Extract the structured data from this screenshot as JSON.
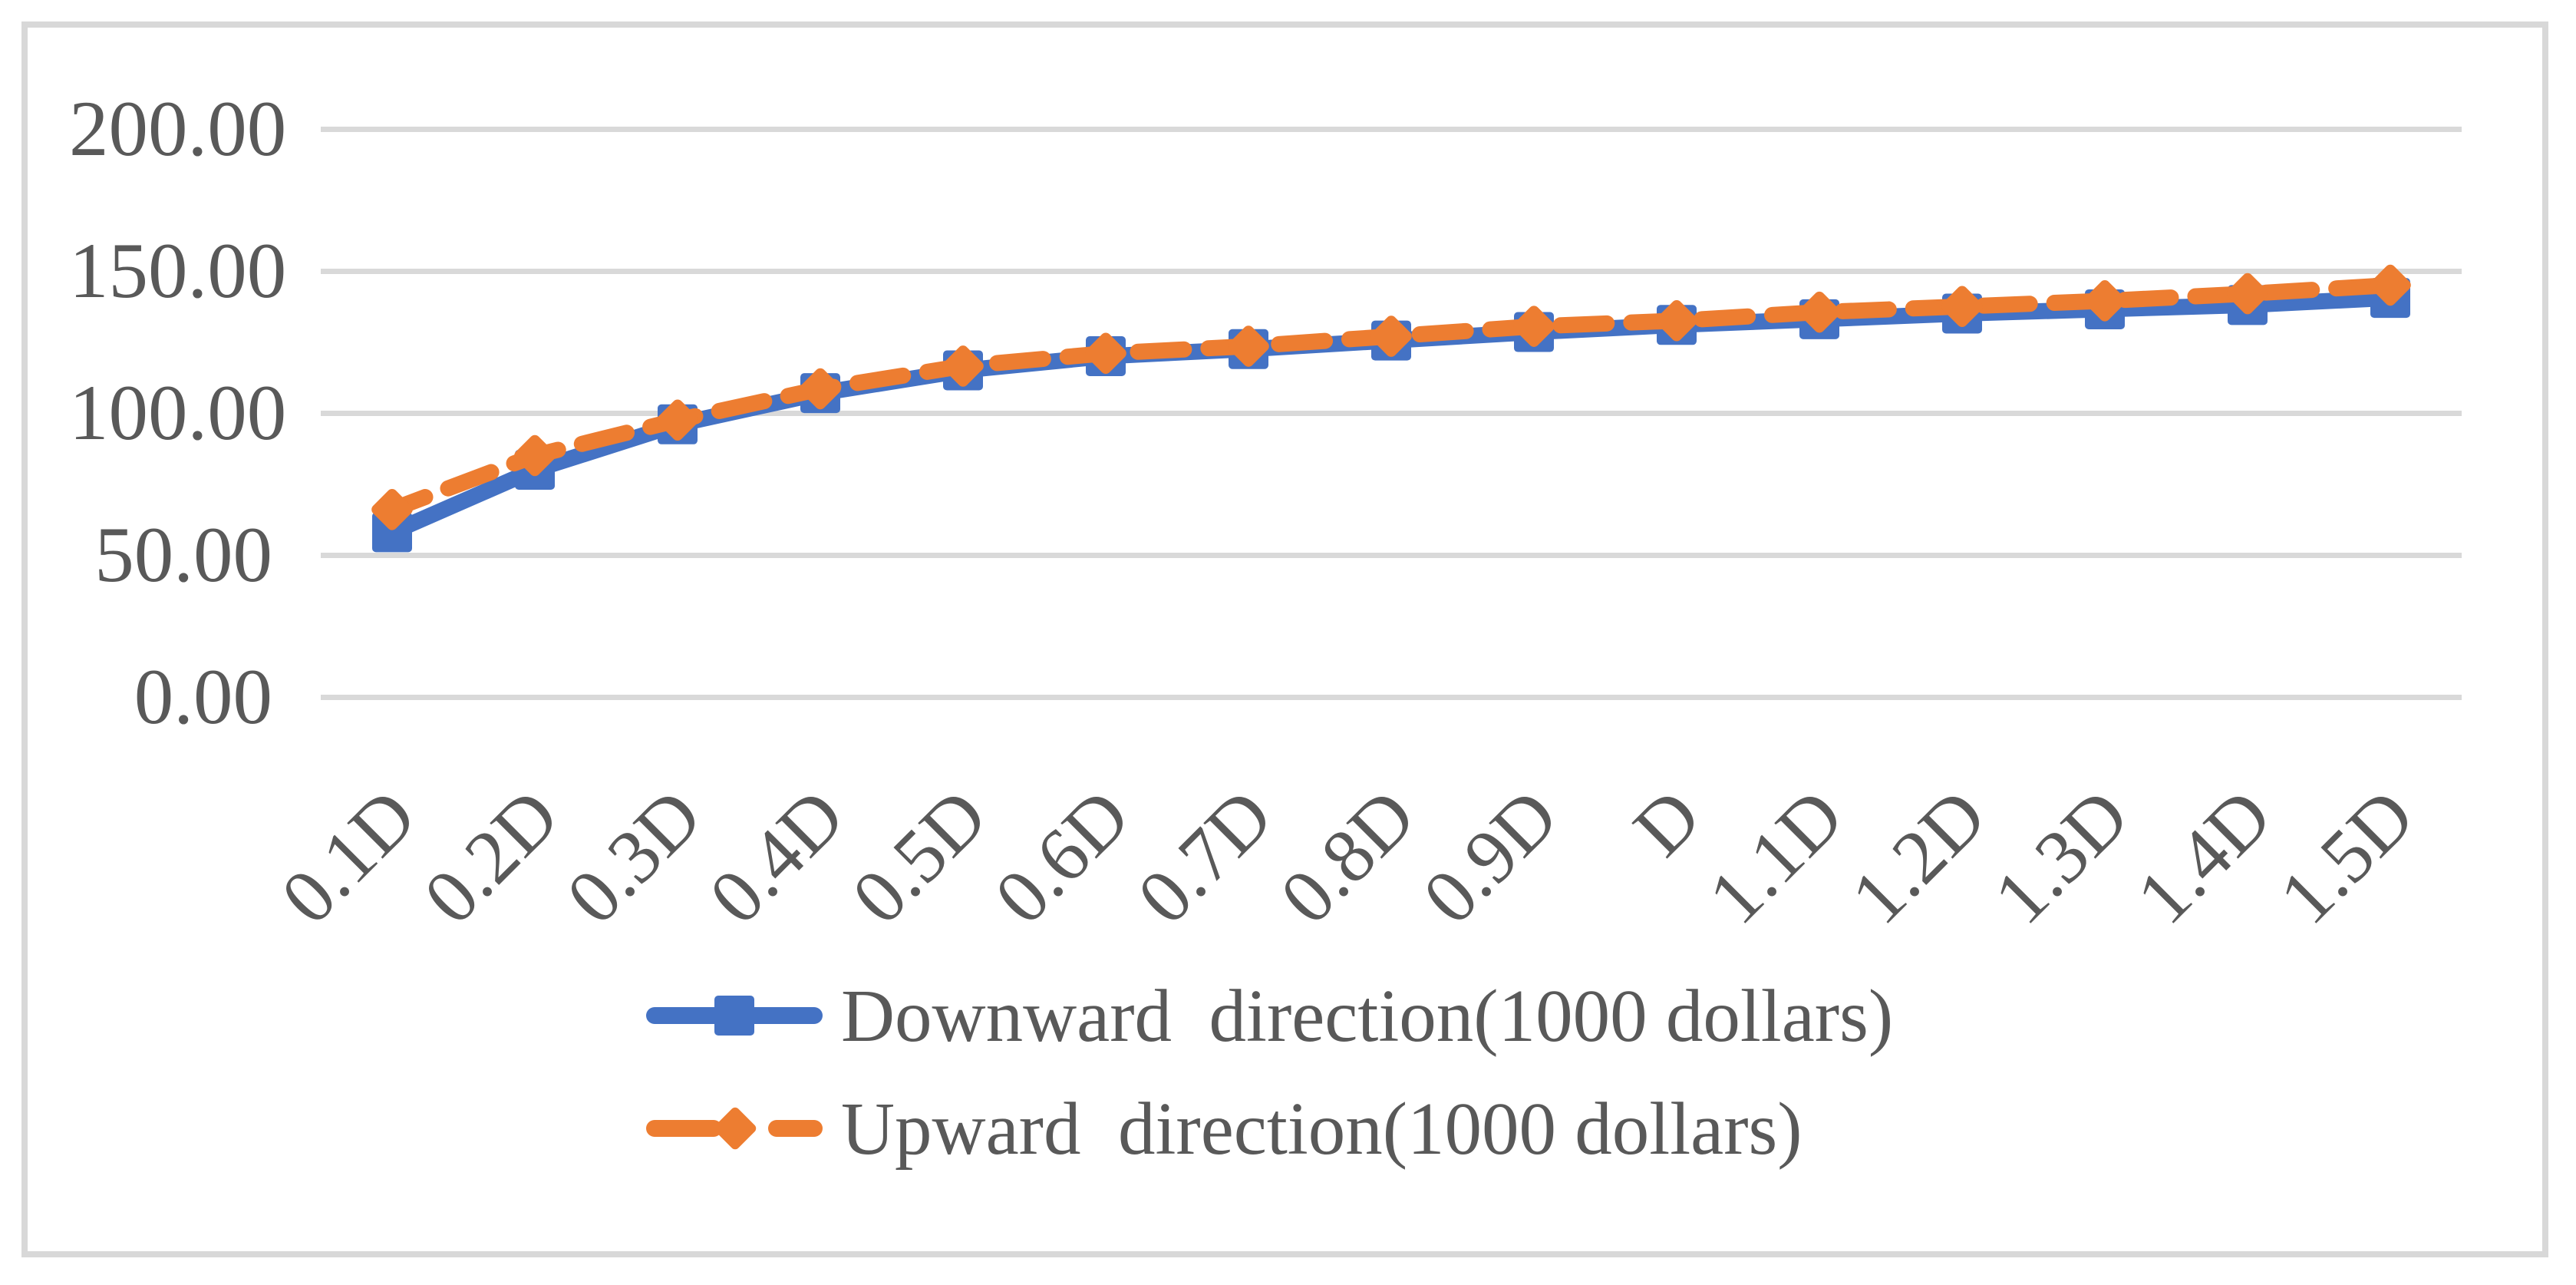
{
  "chart_data": {
    "type": "line",
    "title": "",
    "xlabel": "",
    "ylabel": "",
    "categories": [
      "0.1D",
      "0.2D",
      "0.3D",
      "0.4D",
      "0.5D",
      "0.6D",
      "0.7D",
      "0.8D",
      "0.9D",
      "D",
      "1.1D",
      "1.2D",
      "1.3D",
      "1.4D",
      "1.5D"
    ],
    "series": [
      {
        "name": "Downward  direction(1000 dollars)",
        "color": "#4472C4",
        "marker": "square",
        "line_style": "solid",
        "values": [
          58,
          80,
          96,
          107,
          115,
          120,
          122.5,
          125.5,
          128.5,
          131,
          133,
          135,
          136.5,
          138,
          140.5
        ]
      },
      {
        "name": "Upward  direction(1000 dollars)",
        "color": "#ED7D31",
        "marker": "diamond",
        "line_style": "dashed",
        "values": [
          66,
          85,
          97.5,
          108.5,
          116.5,
          121,
          123.5,
          127,
          130.5,
          132.5,
          135.5,
          137.5,
          139.5,
          142,
          145
        ]
      }
    ],
    "y_ticks": [
      "200.00",
      "150.00",
      "100.00",
      "50.00",
      "0.00"
    ],
    "y_tick_values": [
      200,
      150,
      100,
      50,
      0
    ],
    "ylim": [
      0,
      200
    ],
    "grid": true,
    "legend_position": "bottom"
  },
  "colors": {
    "background": "#FFFFFF",
    "grid": "#D9D9D9",
    "frame_border": "#D8D8D8",
    "text": "#595959",
    "series_downward": "#4472C4",
    "series_upward": "#ED7D31"
  }
}
